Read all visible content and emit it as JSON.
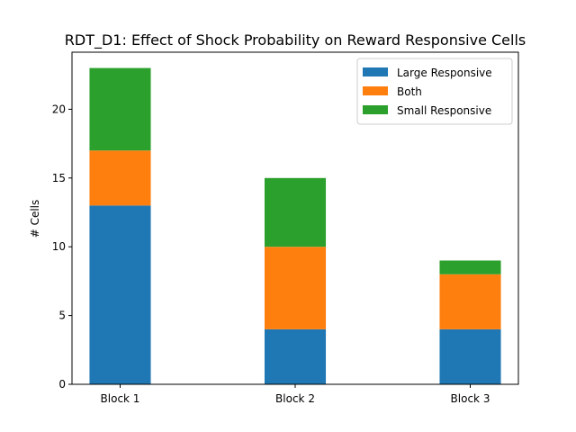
{
  "chart_data": {
    "type": "bar",
    "stacked": true,
    "title": "RDT_D1: Effect of Shock Probability on Reward Responsive Cells",
    "xlabel": "",
    "ylabel": "# Cells",
    "categories": [
      "Block 1",
      "Block 2",
      "Block 3"
    ],
    "series": [
      {
        "name": "Large Responsive",
        "values": [
          13,
          4,
          4
        ],
        "color": "#1f77b4"
      },
      {
        "name": "Both",
        "values": [
          4,
          6,
          4
        ],
        "color": "#ff7f0e"
      },
      {
        "name": "Small Responsive",
        "values": [
          6,
          5,
          1
        ],
        "color": "#2ca02c"
      }
    ],
    "ylim": [
      0,
      24.15
    ],
    "yticks": [
      0,
      5,
      10,
      15,
      20
    ],
    "grid": false,
    "legend_position": "top-right"
  }
}
